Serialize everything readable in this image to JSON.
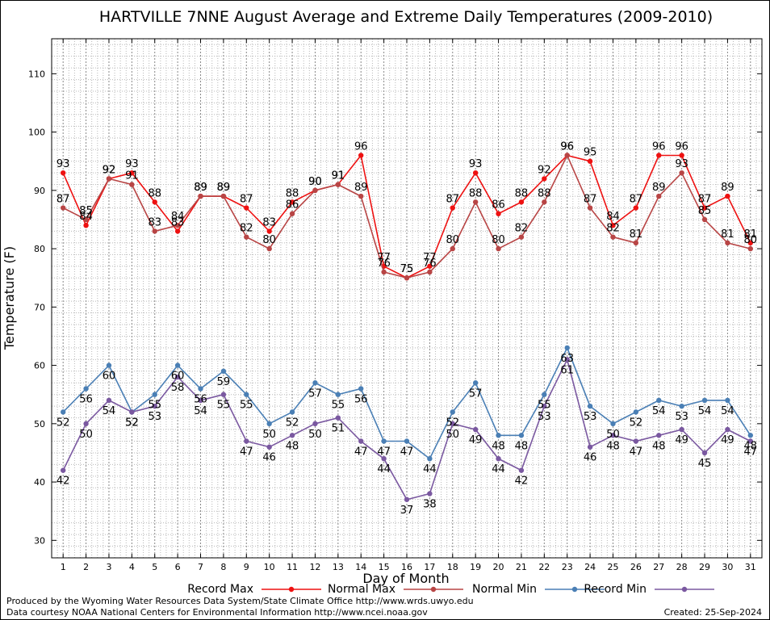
{
  "chart_data": {
    "type": "line",
    "title": "HARTVILLE 7NNE August Average and Extreme Daily Temperatures (2009-2010)",
    "xlabel": "Day of Month",
    "ylabel": "Temperature (F)",
    "xlim": [
      0.5,
      31.5
    ],
    "ylim": [
      27,
      116
    ],
    "yticks": [
      30,
      40,
      50,
      60,
      70,
      80,
      90,
      100,
      110
    ],
    "x": [
      1,
      2,
      3,
      4,
      5,
      6,
      7,
      8,
      9,
      10,
      11,
      12,
      13,
      14,
      15,
      16,
      17,
      18,
      19,
      20,
      21,
      22,
      23,
      24,
      25,
      26,
      27,
      28,
      29,
      30,
      31
    ],
    "grid": true,
    "legend_placement": "bottom",
    "series": [
      {
        "name": "Record Max",
        "color": "#ee1111",
        "label_pos": "above",
        "values": [
          93,
          84,
          92,
          93,
          88,
          83,
          89,
          89,
          87,
          83,
          88,
          90,
          91,
          96,
          77,
          75,
          77,
          87,
          93,
          86,
          88,
          92,
          96,
          95,
          84,
          87,
          96,
          96,
          87,
          89,
          81
        ]
      },
      {
        "name": "Normal Max",
        "color": "#b84545",
        "label_pos": "above",
        "values": [
          87,
          85,
          92,
          91,
          83,
          84,
          89,
          89,
          82,
          80,
          86,
          90,
          91,
          89,
          76,
          75,
          76,
          80,
          88,
          80,
          82,
          88,
          96,
          87,
          82,
          81,
          89,
          93,
          85,
          81,
          80
        ]
      },
      {
        "name": "Normal Min",
        "color": "#4a7fb5",
        "label_pos": "below",
        "values": [
          52,
          56,
          60,
          52,
          55,
          60,
          56,
          59,
          55,
          50,
          52,
          57,
          55,
          56,
          47,
          47,
          44,
          52,
          57,
          48,
          48,
          55,
          63,
          53,
          50,
          52,
          54,
          53,
          54,
          54,
          48
        ]
      },
      {
        "name": "Record Min",
        "color": "#7a58a0",
        "label_pos": "below",
        "values": [
          42,
          50,
          54,
          52,
          53,
          58,
          54,
          55,
          47,
          46,
          48,
          50,
          51,
          47,
          44,
          37,
          38,
          50,
          49,
          44,
          42,
          53,
          61,
          46,
          48,
          47,
          48,
          49,
          45,
          49,
          47
        ]
      }
    ]
  },
  "footer": {
    "produced": "Produced by the Wyoming Water Resources Data System/State Climate Office http://www.wrds.uwyo.edu",
    "courtesy": "Data courtesy NOAA National Centers for Environmental Information http://www.ncei.noaa.gov",
    "created": "Created:  25-Sep-2024"
  }
}
